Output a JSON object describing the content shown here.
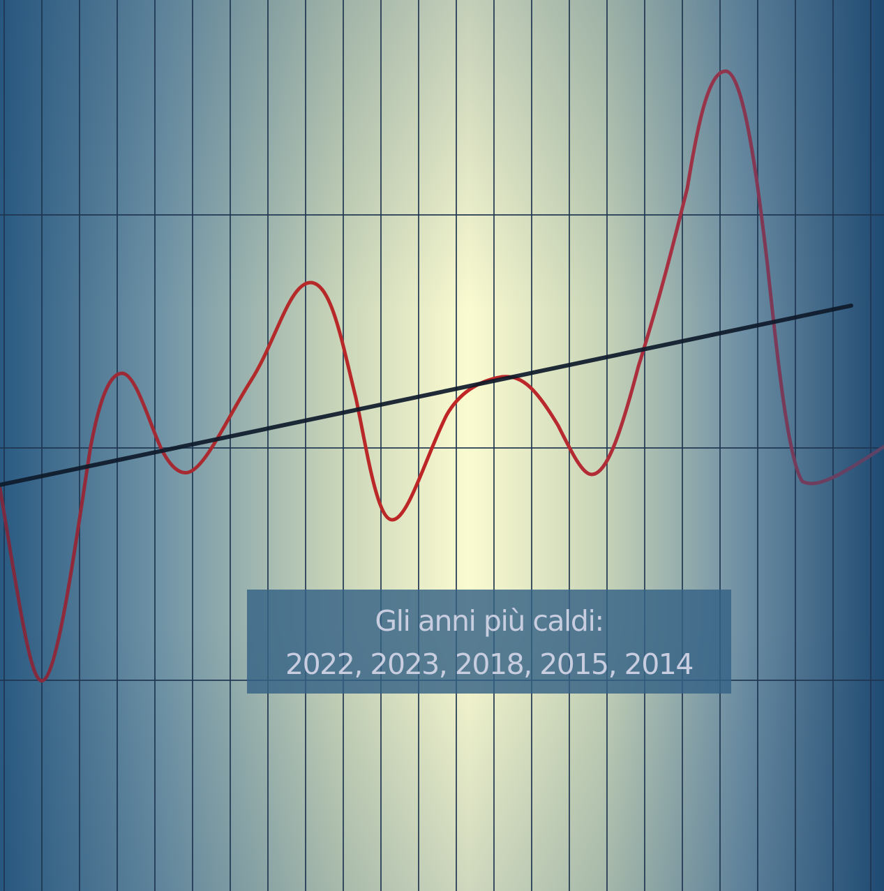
{
  "caption": {
    "line1": "Gli anni più caldi:",
    "line2": "2022, 2023, 2018, 2015, 2014"
  },
  "colors": {
    "background_dark": "#1f4a72",
    "background_light": "#fbfbd0",
    "grid_line": "#1f3550",
    "wave_line": "#b32a2a",
    "trend_line": "#0e1a2a",
    "caption_box": "#346285",
    "caption_text": "#c9cde0"
  }
}
